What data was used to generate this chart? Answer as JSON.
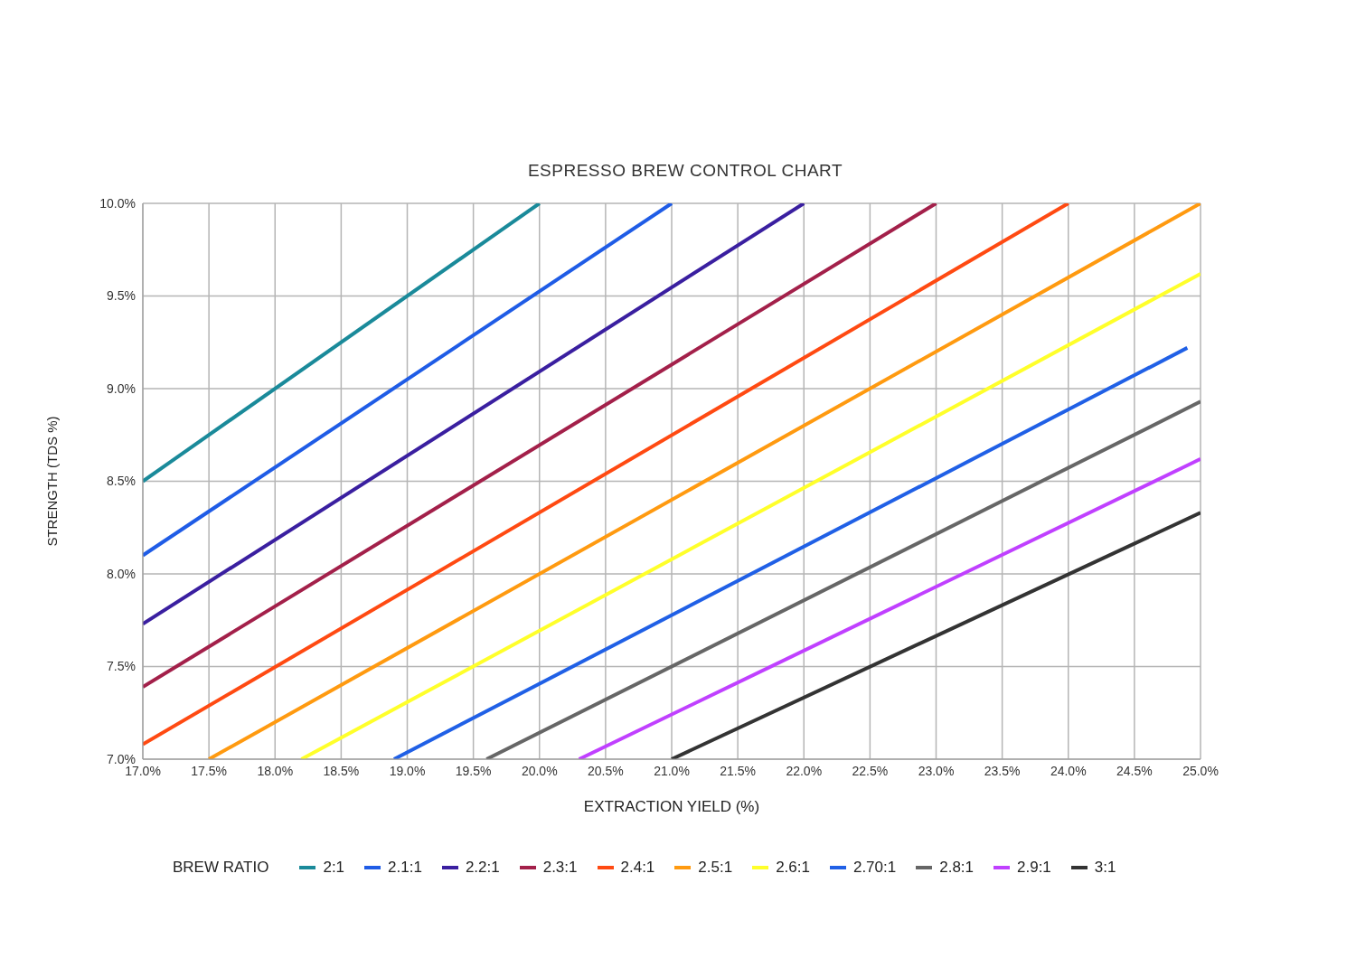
{
  "chart_data": {
    "type": "line",
    "title": "ESPRESSO BREW CONTROL CHART",
    "xlabel": "EXTRACTION YIELD (%)",
    "ylabel": "STRENGTH (TDS %)",
    "legend_title": "BREW RATIO",
    "legend": "bottom",
    "grid": true,
    "marker": "none",
    "line_style": "solid",
    "xlim": [
      17,
      25
    ],
    "ylim": [
      7,
      10
    ],
    "xticks": [
      {
        "value": 17,
        "label": "17.0%"
      },
      {
        "value": 17.5,
        "label": "17.5%"
      },
      {
        "value": 18,
        "label": "18.0%"
      },
      {
        "value": 18.5,
        "label": "18.5%"
      },
      {
        "value": 19,
        "label": "19.0%"
      },
      {
        "value": 19.5,
        "label": "19.5%"
      },
      {
        "value": 20,
        "label": "20.0%"
      },
      {
        "value": 20.5,
        "label": "20.5%"
      },
      {
        "value": 21,
        "label": "21.0%"
      },
      {
        "value": 21.5,
        "label": "21.5%"
      },
      {
        "value": 22,
        "label": "22.0%"
      },
      {
        "value": 22.5,
        "label": "22.5%"
      },
      {
        "value": 23,
        "label": "23.0%"
      },
      {
        "value": 23.5,
        "label": "23.5%"
      },
      {
        "value": 24,
        "label": "24.0%"
      },
      {
        "value": 24.5,
        "label": "24.5%"
      },
      {
        "value": 25,
        "label": "25.0%"
      }
    ],
    "yticks": [
      {
        "value": 7,
        "label": "7.0%"
      },
      {
        "value": 7.5,
        "label": "7.5%"
      },
      {
        "value": 8,
        "label": "8.0%"
      },
      {
        "value": 8.5,
        "label": "8.5%"
      },
      {
        "value": 9,
        "label": "9.0%"
      },
      {
        "value": 9.5,
        "label": "9.5%"
      },
      {
        "value": 10,
        "label": "10.0%"
      }
    ],
    "series": [
      {
        "name": "2:1",
        "color": "#1a8a9a",
        "x": [
          17,
          20
        ],
        "values": [
          8.5,
          10
        ]
      },
      {
        "name": "2.1:1",
        "color": "#1f5ce6",
        "x": [
          17,
          21
        ],
        "values": [
          8.1,
          10
        ]
      },
      {
        "name": "2.2:1",
        "color": "#3a1fa0",
        "x": [
          17,
          22
        ],
        "values": [
          7.73,
          10
        ]
      },
      {
        "name": "2.3:1",
        "color": "#a3204a",
        "x": [
          17,
          23
        ],
        "values": [
          7.39,
          10
        ]
      },
      {
        "name": "2.4:1",
        "color": "#ff4a12",
        "x": [
          17,
          24
        ],
        "values": [
          7.08,
          10
        ]
      },
      {
        "name": "2.5:1",
        "color": "#ff9a10",
        "x": [
          17.5,
          25
        ],
        "values": [
          7,
          10
        ]
      },
      {
        "name": "2.6:1",
        "color": "#ffff2a",
        "x": [
          18.2,
          25
        ],
        "values": [
          7,
          9.62
        ]
      },
      {
        "name": "2.70:1",
        "color": "#2060e6",
        "x": [
          18.9,
          24.9
        ],
        "values": [
          7,
          9.22
        ]
      },
      {
        "name": "2.8:1",
        "color": "#666666",
        "x": [
          19.6,
          25
        ],
        "values": [
          7,
          8.93
        ]
      },
      {
        "name": "2.9:1",
        "color": "#c040ff",
        "x": [
          20.3,
          25
        ],
        "values": [
          7,
          8.62
        ]
      },
      {
        "name": "3:1",
        "color": "#333333",
        "x": [
          21,
          25
        ],
        "values": [
          7,
          8.33
        ]
      }
    ]
  }
}
